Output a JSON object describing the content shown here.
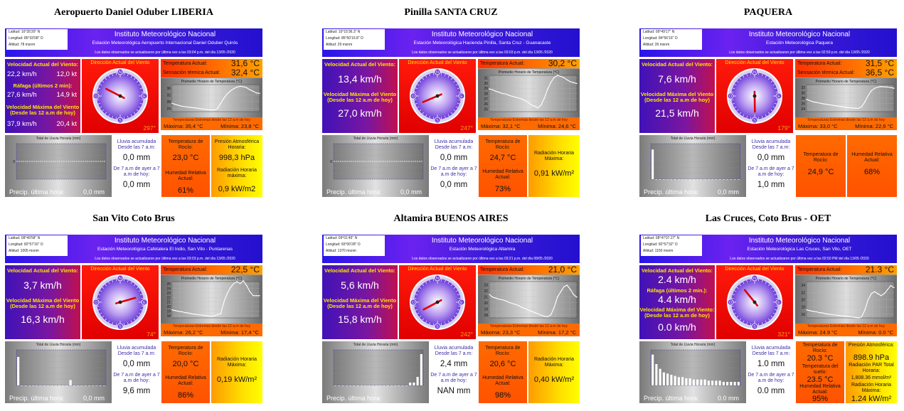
{
  "institute": "Instituto Meteorológico Nacional",
  "labels": {
    "wind_current": "Velocidad Actual del Viento:",
    "wind_max": "Velocidad Máxima del Viento",
    "wind_max_sub": "(Desde las 12 a.m de hoy)",
    "gust": "Ráfaga (últimos 2 min):",
    "dir_title": "Dirección Actual del Viento",
    "temp_current": "Temperatura Actual:",
    "sensation": "Sensación térmica Actual:",
    "temp_graph": "Promedio Horario de Temperatura (°C)",
    "extremes": "Temperaturas Extremas desde las 12 a.m de hoy",
    "max_lbl": "Máxima:",
    "min_lbl": "Mínima:",
    "rain_title": "Total de Lluvia Horaria (mm)",
    "rain_last": "Precip. última hora:",
    "acc_lbl": "Lluvia acumulada Desde las 7 a.m:",
    "acc_yest": "De 7 a.m de ayer a 7 a.m de hoy:",
    "dew": "Temperatura de Rocío:",
    "humidity": "Humedad Relativa Actual:",
    "pressure": "Presión Atmosférica Horaria:",
    "radiation": "Radiación Horaria Máxima:"
  },
  "stations": [
    {
      "title": "Aeropuerto Daniel Oduber LIBERIA",
      "coords": [
        "Latitud: 10°35'20\" N",
        "Longitud: 85°33'08\" O",
        "Altitud: 78 msnm"
      ],
      "subtitle": "Estación Meteorológica Aeropuerto Internacional Daniel Oduber Quirós",
      "update": "Los datos observados se actualizaron por última vez a las 03:04 p.m. del día 13/05 /2020",
      "wind_kmh": "22,2 km/h",
      "wind_kt": "12,0 kt",
      "gust_kmh": "27,6 km/h",
      "gust_kt": "14,9 kt",
      "max_kmh": "37,9 km/h",
      "max_kt": "20,4 kt",
      "direction": "297°",
      "dir_deg": 297,
      "temp": "31,6 °C",
      "sensation": "32,4 °C",
      "ext_max": "35,4 °C",
      "ext_min": "23,8 °C",
      "temp_series": [
        27,
        26.5,
        26,
        25.6,
        25.4,
        25.2,
        25,
        24.8,
        24.6,
        24.4,
        24.2,
        24,
        23.9,
        23.8,
        24.5,
        27,
        29.5,
        31.5,
        33,
        34,
        34.8,
        35.2,
        35,
        34.5,
        33.5,
        32.8,
        32,
        31.8
      ],
      "temp_ylim": [
        23,
        36
      ],
      "temp_ticks": [
        "36",
        "32",
        "28",
        "24"
      ],
      "rain_series": [],
      "rain_last": "0,0 mm",
      "acc_7am": "0,0 mm",
      "acc_yest": "0,0 mm",
      "dew": "23,0 °C",
      "humidity": "61%",
      "pressure": "998,3 hPa",
      "radiation": "0,9 kW/m2"
    },
    {
      "title": "Pinilla SANTA CRUZ",
      "coords": [
        "Latitud: 10°15'36.3\" N",
        "Longitud: 85°50'16.8\" O",
        "Altitud: 29 msnm"
      ],
      "subtitle": "Estación Meteorológica Hacienda Pinilla, Santa Cruz - Guanacaste",
      "update": "Los datos observados se actualizaron por última vez a las 03:03 p.m. del día 13/05 /2020",
      "wind_kmh": "13,4 km/h",
      "max_kmh": "27,0 km/h",
      "direction": "247°",
      "dir_deg": 247,
      "temp": "30,2 °C",
      "ext_max": "32,1 °C",
      "ext_min": "24,6 °C",
      "temp_series": [
        29,
        28.8,
        28.5,
        28.3,
        28,
        27.9,
        27.6,
        27.4,
        27.2,
        27,
        26.8,
        26.5,
        26,
        25.5,
        25.2,
        24.8,
        25.5,
        27,
        29,
        30.5,
        31.5,
        32,
        31.8,
        31.5,
        31,
        30.6,
        30.4,
        30.2
      ],
      "temp_ylim": [
        24,
        32
      ],
      "temp_ticks": [
        "31",
        "30",
        "29",
        "28",
        "27",
        "26",
        "25"
      ],
      "rain_series": [],
      "rain_last": "0,0 mm",
      "acc_7am": "0,0 mm",
      "acc_yest": "0,0 mm",
      "dew": "24,7 °C",
      "humidity": "73%",
      "radiation": "0,91 kW/m²"
    },
    {
      "title": "PAQUERA",
      "coords": [
        "Latitud: 09°49'17\" N",
        "Longitud: 84°56'16\" O",
        "Altitud: 39 msnm"
      ],
      "subtitle": "Estación Meteorológica Paquera",
      "update": "Los datos observados se actualizaron por última vez a las 02:59 p.m. del día 13/05 /2020",
      "wind_kmh": "7,6 km/h",
      "max_kmh": "21,5 km/h",
      "direction": "179°",
      "dir_deg": 179,
      "temp": "31,5 °C",
      "sensation": "36,5 °C",
      "ext_max": "33,0 °C",
      "ext_min": "22,6 °C",
      "temp_series": [
        27,
        26.5,
        26,
        25.8,
        25.5,
        25.2,
        25,
        24.8,
        24.6,
        24.4,
        24.2,
        24,
        23.8,
        23.6,
        23.5,
        23.4,
        23.3,
        24,
        26,
        28.5,
        30.5,
        31.5,
        32,
        32.2,
        32.1,
        32,
        31.8,
        31.5
      ],
      "temp_ylim": [
        22,
        33
      ],
      "temp_ticks": [
        "32",
        "30",
        "28",
        "26",
        "24"
      ],
      "rain_series": [
        1,
        0,
        0,
        0,
        0,
        0,
        0,
        0,
        0,
        0,
        0,
        0,
        0,
        0,
        0,
        0,
        0,
        0,
        0,
        0,
        0,
        0,
        0,
        0
      ],
      "rain_ymax": 1.2,
      "rain_last": "0,0 mm",
      "acc_7am": "0,0 mm",
      "acc_yest": "1,0 mm",
      "dew": "24,9 °C",
      "humidity": "68%"
    },
    {
      "title": "San Vito Coto Brus",
      "coords": [
        "Latitud: 08°49'58\" N",
        "Longitud: 82°57'16\" O",
        "Altitud: 1005 msnm"
      ],
      "subtitle": "Estación Meteorológica Cafetalera El Indio, San Vito - Puntarenas",
      "update": "Los datos observados se actualizaron por última vez a las 03:03 p.m. del día 13/05 /2020",
      "wind_kmh": "3,7 km/h",
      "max_kmh": "16,3 km/h",
      "direction": "74°",
      "dir_deg": 74,
      "temp": "22,5 °C",
      "ext_max": "26,2 °C",
      "ext_min": "17,4 °C",
      "temp_series": [
        19,
        18.8,
        18.6,
        18.5,
        18.3,
        18.2,
        18,
        17.9,
        17.8,
        17.7,
        17.6,
        17.5,
        17.4,
        17.5,
        17.8,
        18,
        21,
        23,
        24.5,
        25.5,
        26,
        25.5,
        26.2,
        25,
        23.5,
        22.5,
        22.5,
        22.5
      ],
      "temp_ylim": [
        17,
        26
      ],
      "temp_ticks": [
        "25",
        "24",
        "23",
        "22",
        "21",
        "20",
        "19",
        "18"
      ],
      "rain_series": [
        1.6,
        0,
        0,
        0,
        0,
        0,
        0,
        0,
        0,
        0,
        0,
        0,
        0,
        0,
        0.3,
        0,
        0,
        0,
        0,
        0,
        0,
        0,
        0,
        0
      ],
      "rain_ymax": 2,
      "rain_last": "0,0 mm",
      "acc_7am": "0,0 mm",
      "acc_yest": "9,6 mm",
      "dew": "20,0 °C",
      "humidity": "86%",
      "radiation": "0,19 kW/m²"
    },
    {
      "title": "Altamira BUENOS AIRES",
      "coords": [
        "Latitud: 09°01'45\" N",
        "Longitud: 83°00'28\" O",
        "Altitud: 1370 msnm"
      ],
      "subtitle": "Estación Meteorológica Altamira",
      "update": "Los datos observados se actualizaron por última vez a las 03:21 p.m. del día 08/05 /2020",
      "wind_kmh": "5,6 km/h",
      "max_kmh": "15,8 km/h",
      "direction": "242°",
      "dir_deg": 242,
      "temp": "21,0 °C",
      "ext_max": "23,3 °C",
      "ext_min": "17,2 °C",
      "temp_series": [
        21.5,
        21,
        20.8,
        20.6,
        20.5,
        20.3,
        20,
        19.8,
        19.6,
        19.4,
        19,
        18.8,
        18.5,
        18.3,
        18,
        17.8,
        17.5,
        17.3,
        17.2,
        17.6,
        19,
        21,
        22,
        23,
        23.3,
        22.5,
        21.5,
        21
      ],
      "temp_ylim": [
        17,
        24
      ],
      "temp_ticks": [
        "23",
        "22",
        "21",
        "20",
        "19",
        "18"
      ],
      "rain_series": [
        0,
        0,
        0,
        0,
        0,
        0,
        0,
        0,
        0,
        0,
        0,
        0,
        0,
        0,
        0,
        0,
        0,
        0,
        0,
        0,
        0.2,
        0.2,
        0.6,
        2.2
      ],
      "rain_ymax": 2.5,
      "rain_last": "",
      "acc_7am": "2,4 mm",
      "acc_yest": "NAN mm",
      "dew": "20,6 °C",
      "humidity": "98%",
      "radiation": "0,40 kW/m²"
    },
    {
      "title": "Las Cruces, Coto Brus - OET",
      "coords": [
        "Latitud: 08°47'07.27\" N",
        "Longitud: 82°57'32\" O",
        "Altitud: 1150 msnm"
      ],
      "subtitle": "Estación Meteorológica Las Cruces, San Vito, OET",
      "update": "Los datos observados se actualizaron por última vez a las 02:50 PM del día 13/05 /2020",
      "wind_kmh": "2.4 km/h",
      "gust_kmh": "4.4 km/h",
      "max_kmh": "0.0 km/h",
      "direction": "321°",
      "dir_deg": 321,
      "temp": "21.3 °C",
      "ext_max": "24.9 °C",
      "ext_min": "0.0 °C",
      "temp_series": [
        18,
        17.8,
        17.6,
        17.5,
        17.3,
        17.2,
        17,
        16.9,
        16.8,
        16.7,
        16.6,
        16.5,
        16.4,
        16.3,
        16.2,
        16.1,
        16,
        16.2,
        18,
        20.5,
        22,
        22.5,
        22,
        21.5,
        22,
        23,
        24,
        23.5
      ],
      "temp_ylim": [
        16,
        25
      ],
      "temp_ticks": [
        "24",
        "22",
        "20",
        "18",
        "16"
      ],
      "rain_series": [
        2.6,
        1.8,
        1.4,
        1.1,
        1,
        0.9,
        0.8,
        0.7,
        0.7,
        0.6,
        0.6,
        0.5,
        0.5,
        0.5,
        0.5,
        0.4,
        0.4,
        0.4,
        0.4,
        0.3,
        0.3,
        0.3,
        0.3,
        0.3
      ],
      "rain_ymax": 3,
      "rain_last": "0.0 mm",
      "acc_7am": "1.0 mm",
      "acc_yest": "0.0 mm",
      "dew": "20.3 °C",
      "soil_temp": "23.5 °C",
      "soil_lbl": "Temperatura del suelo:",
      "humidity": "95%",
      "pressure": "898.9 hPa",
      "pressure_lbl": "Presión Atmosférica:",
      "par": "1,808.36 mmol/m²",
      "par_lbl": "Radiación PAR Total Horaria:",
      "radiation": "1.24 kW/m²"
    }
  ]
}
